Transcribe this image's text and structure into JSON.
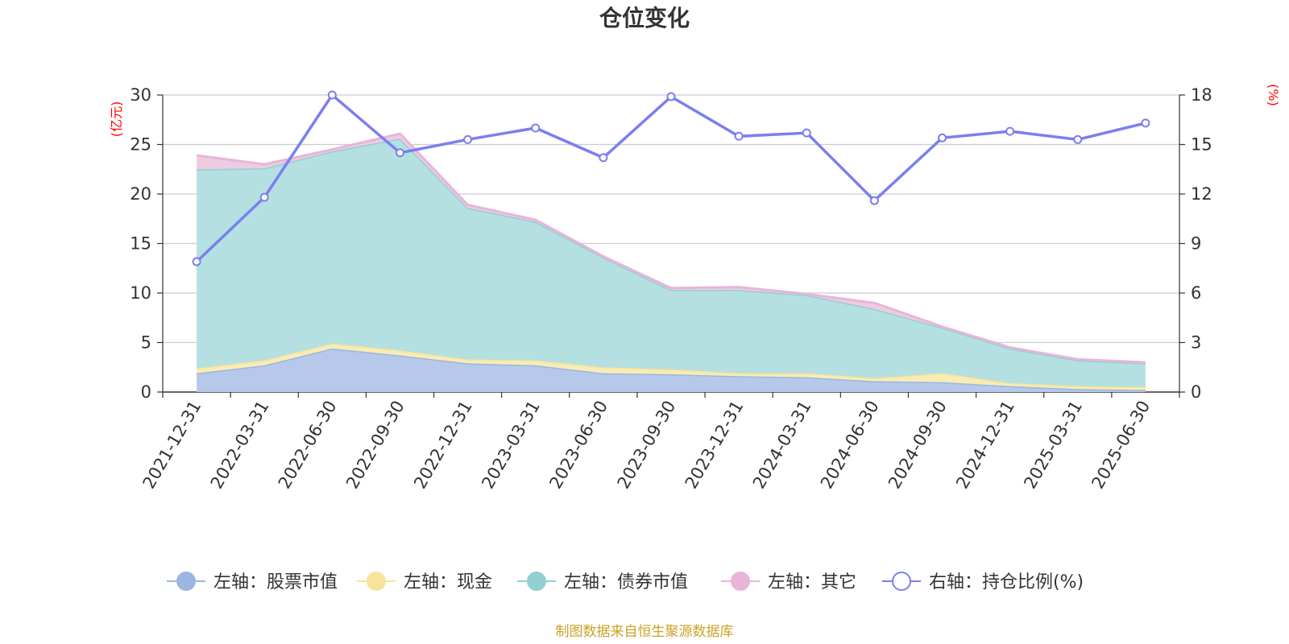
{
  "source_note": "制图数据来自恒生聚源数据库",
  "chart_data": {
    "type": "area",
    "title": "仓位变化",
    "left_axis": {
      "unit_label": "(亿元)",
      "ylim": [
        0,
        30
      ],
      "ticks": [
        "0",
        "5",
        "10",
        "15",
        "20",
        "25",
        "30"
      ]
    },
    "right_axis": {
      "unit_label": "(%)",
      "ylim": [
        0,
        18
      ],
      "ticks": [
        "0",
        "3",
        "6",
        "9",
        "12",
        "15",
        "18"
      ]
    },
    "categories": [
      "2021-12-31",
      "2022-03-31",
      "2022-06-30",
      "2022-09-30",
      "2022-12-31",
      "2023-03-31",
      "2023-06-30",
      "2023-09-30",
      "2023-12-31",
      "2024-03-31",
      "2024-06-30",
      "2024-09-30",
      "2024-12-31",
      "2025-03-31",
      "2025-06-30"
    ],
    "stacked_series": [
      {
        "name": "左轴：股票市值",
        "color": "#9bb6e1",
        "fill": "#b7c9ea",
        "values": [
          1.9,
          2.7,
          4.4,
          3.7,
          2.9,
          2.7,
          1.9,
          1.8,
          1.6,
          1.5,
          1.1,
          1.0,
          0.6,
          0.3,
          0.2
        ]
      },
      {
        "name": "左轴：现金",
        "color": "#f7e39b",
        "fill": "#f8ecb5",
        "values": [
          0.5,
          0.5,
          0.5,
          0.5,
          0.4,
          0.5,
          0.6,
          0.5,
          0.3,
          0.4,
          0.3,
          0.9,
          0.3,
          0.3,
          0.3
        ]
      },
      {
        "name": "左轴：债券市值",
        "color": "#92d0d2",
        "fill": "#b4e0e1",
        "values": [
          20.1,
          19.4,
          19.4,
          21.4,
          15.3,
          14.0,
          11.1,
          8.0,
          8.4,
          7.9,
          7.0,
          4.6,
          3.5,
          2.6,
          2.4
        ]
      },
      {
        "name": "左轴：其它",
        "color": "#e8b5d8",
        "fill": "#efcbe2",
        "values": [
          1.4,
          0.4,
          0.2,
          0.5,
          0.3,
          0.2,
          0.1,
          0.2,
          0.3,
          0.1,
          0.6,
          0.1,
          0.1,
          0.1,
          0.1
        ]
      }
    ],
    "line_series": {
      "name": "右轴：持仓比例(%)",
      "color": "#7b7ff0",
      "axis": "right",
      "values": [
        7.9,
        11.8,
        18.0,
        14.5,
        15.3,
        16.0,
        14.2,
        17.9,
        15.5,
        15.7,
        11.6,
        15.4,
        15.8,
        15.3,
        16.3
      ]
    },
    "grid": true,
    "legend_position": "bottom"
  }
}
